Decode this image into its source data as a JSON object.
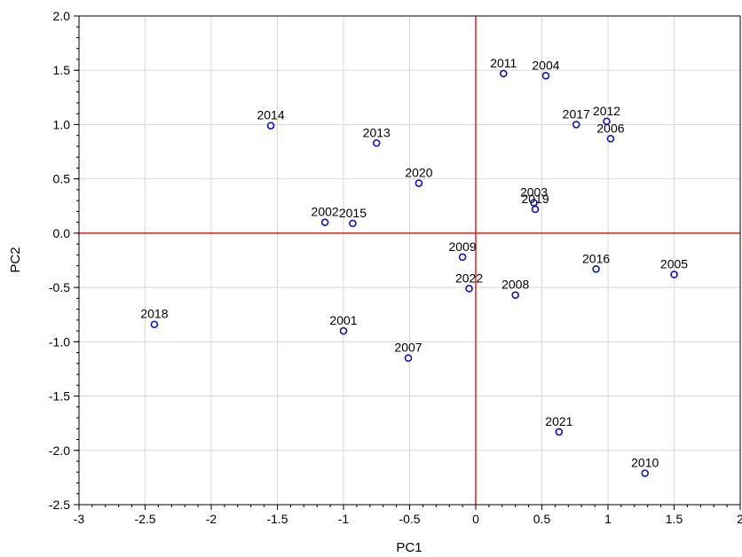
{
  "chart_data": {
    "type": "scatter",
    "title": "",
    "xlabel": "PC1",
    "ylabel": "PC2",
    "xlim": [
      -3,
      2
    ],
    "ylim": [
      -2.5,
      2.0
    ],
    "grid": true,
    "reference_lines": {
      "x": 0,
      "y": 0,
      "color": "#e0201e"
    },
    "marker_color": "#1010c8",
    "x_ticks": [
      {
        "value": -3,
        "label": "-3"
      },
      {
        "value": -2.5,
        "label": "-2.5"
      },
      {
        "value": -2,
        "label": "-2"
      },
      {
        "value": -1.5,
        "label": "-1.5"
      },
      {
        "value": -1,
        "label": "-1"
      },
      {
        "value": -0.5,
        "label": "-0.5"
      },
      {
        "value": 0,
        "label": "0"
      },
      {
        "value": 0.5,
        "label": "0.5"
      },
      {
        "value": 1,
        "label": "1"
      },
      {
        "value": 1.5,
        "label": "1.5"
      },
      {
        "value": 2,
        "label": "2"
      }
    ],
    "y_ticks": [
      {
        "value": 2.0,
        "label": "2.0"
      },
      {
        "value": 1.5,
        "label": "1.5"
      },
      {
        "value": 1.0,
        "label": "1.0"
      },
      {
        "value": 0.5,
        "label": "0.5"
      },
      {
        "value": 0.0,
        "label": "0.0"
      },
      {
        "value": -0.5,
        "label": "-0.5"
      },
      {
        "value": -1.0,
        "label": "-1.0"
      },
      {
        "value": -1.5,
        "label": "-1.5"
      },
      {
        "value": -2.0,
        "label": "-2.0"
      },
      {
        "value": -2.5,
        "label": "-2.5"
      }
    ],
    "points": [
      {
        "label": "2001",
        "x": -1.0,
        "y": -0.9
      },
      {
        "label": "2002",
        "x": -1.14,
        "y": 0.1
      },
      {
        "label": "2003",
        "x": 0.44,
        "y": 0.28
      },
      {
        "label": "2004",
        "x": 0.53,
        "y": 1.45
      },
      {
        "label": "2005",
        "x": 1.5,
        "y": -0.38
      },
      {
        "label": "2006",
        "x": 1.02,
        "y": 0.87
      },
      {
        "label": "2007",
        "x": -0.51,
        "y": -1.15
      },
      {
        "label": "2008",
        "x": 0.3,
        "y": -0.57
      },
      {
        "label": "2009",
        "x": -0.1,
        "y": -0.22
      },
      {
        "label": "2010",
        "x": 1.28,
        "y": -2.21
      },
      {
        "label": "2011",
        "x": 0.21,
        "y": 1.47
      },
      {
        "label": "2012",
        "x": 0.99,
        "y": 1.03
      },
      {
        "label": "2013",
        "x": -0.75,
        "y": 0.83
      },
      {
        "label": "2014",
        "x": -1.55,
        "y": 0.99
      },
      {
        "label": "2015",
        "x": -0.93,
        "y": 0.09
      },
      {
        "label": "2016",
        "x": 0.91,
        "y": -0.33
      },
      {
        "label": "2017",
        "x": 0.76,
        "y": 1.0
      },
      {
        "label": "2018",
        "x": -2.43,
        "y": -0.84
      },
      {
        "label": "2019",
        "x": 0.45,
        "y": 0.22
      },
      {
        "label": "2020",
        "x": -0.43,
        "y": 0.46
      },
      {
        "label": "2021",
        "x": 0.63,
        "y": -1.83
      },
      {
        "label": "2022",
        "x": -0.05,
        "y": -0.51
      }
    ]
  }
}
